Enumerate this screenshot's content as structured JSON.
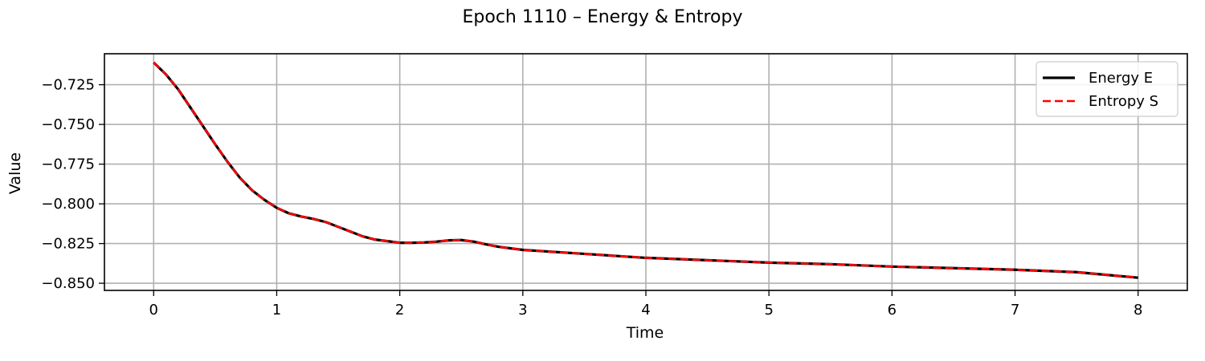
{
  "chart_data": {
    "type": "line",
    "title": "Epoch 1110 – Energy & Entropy",
    "xlabel": "Time",
    "ylabel": "Value",
    "xlim": [
      -0.4,
      8.4
    ],
    "ylim": [
      -0.8545,
      -0.7055
    ],
    "xticks": [
      0,
      1,
      2,
      3,
      4,
      5,
      6,
      7,
      8
    ],
    "yticks": [
      -0.725,
      -0.75,
      -0.775,
      -0.8,
      -0.825,
      -0.85
    ],
    "xtick_labels": [
      "0",
      "1",
      "2",
      "3",
      "4",
      "5",
      "6",
      "7",
      "8"
    ],
    "ytick_labels": [
      "−0.725",
      "−0.750",
      "−0.775",
      "−0.800",
      "−0.825",
      "−0.850"
    ],
    "grid": true,
    "legend_position": "top-right",
    "series": [
      {
        "name": "Energy E",
        "color": "#000000",
        "style": "solid",
        "x": [
          0,
          0.1,
          0.2,
          0.3,
          0.4,
          0.5,
          0.6,
          0.7,
          0.8,
          0.9,
          1.0,
          1.1,
          1.2,
          1.3,
          1.4,
          1.5,
          1.6,
          1.7,
          1.8,
          1.9,
          2.0,
          2.1,
          2.2,
          2.3,
          2.4,
          2.5,
          2.6,
          2.7,
          2.8,
          3.0,
          3.5,
          4.0,
          4.5,
          5.0,
          5.5,
          6.0,
          6.5,
          7.0,
          7.5,
          8.0
        ],
        "y": [
          -0.711,
          -0.7185,
          -0.728,
          -0.7395,
          -0.751,
          -0.7625,
          -0.7735,
          -0.7835,
          -0.7915,
          -0.7975,
          -0.8025,
          -0.806,
          -0.808,
          -0.8095,
          -0.8115,
          -0.8145,
          -0.8175,
          -0.8205,
          -0.8225,
          -0.8235,
          -0.8245,
          -0.8245,
          -0.8243,
          -0.8238,
          -0.823,
          -0.8228,
          -0.8238,
          -0.8255,
          -0.827,
          -0.829,
          -0.8315,
          -0.834,
          -0.8355,
          -0.837,
          -0.838,
          -0.8395,
          -0.8405,
          -0.8415,
          -0.843,
          -0.8465
        ]
      },
      {
        "name": "Entropy S",
        "color": "#ff0000",
        "style": "dashed",
        "x": [
          0,
          0.1,
          0.2,
          0.3,
          0.4,
          0.5,
          0.6,
          0.7,
          0.8,
          0.9,
          1.0,
          1.1,
          1.2,
          1.3,
          1.4,
          1.5,
          1.6,
          1.7,
          1.8,
          1.9,
          2.0,
          2.1,
          2.2,
          2.3,
          2.4,
          2.5,
          2.6,
          2.7,
          2.8,
          3.0,
          3.5,
          4.0,
          4.5,
          5.0,
          5.5,
          6.0,
          6.5,
          7.0,
          7.5,
          8.0
        ],
        "y": [
          -0.711,
          -0.7185,
          -0.728,
          -0.7395,
          -0.751,
          -0.7625,
          -0.7735,
          -0.7835,
          -0.7915,
          -0.7975,
          -0.8025,
          -0.806,
          -0.808,
          -0.8095,
          -0.8115,
          -0.8145,
          -0.8175,
          -0.8205,
          -0.8225,
          -0.8235,
          -0.8245,
          -0.8245,
          -0.8243,
          -0.8238,
          -0.823,
          -0.8228,
          -0.8238,
          -0.8255,
          -0.827,
          -0.829,
          -0.8315,
          -0.834,
          -0.8355,
          -0.837,
          -0.838,
          -0.8395,
          -0.8405,
          -0.8415,
          -0.843,
          -0.8465
        ]
      }
    ]
  }
}
